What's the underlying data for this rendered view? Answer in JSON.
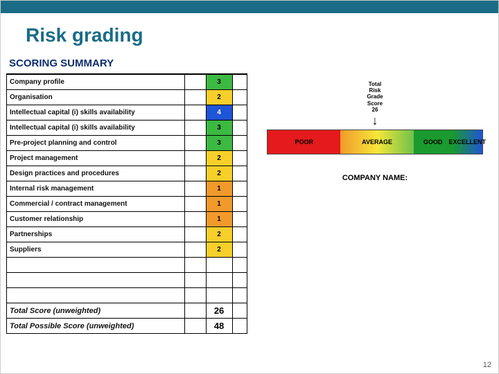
{
  "title": "Risk grading",
  "summary_heading": "SCORING SUMMARY",
  "rows": [
    {
      "label": "Company profile",
      "score": 3,
      "bg": "#3cb943"
    },
    {
      "label": "Organisation",
      "score": 2,
      "bg": "#f7cf2a"
    },
    {
      "label": "Intellectual capital (i) skills availability",
      "score": 4,
      "bg": "#1f55d6",
      "fg": "#ffffff"
    },
    {
      "label": "Intellectual capital (i) skills availability",
      "score": 3,
      "bg": "#3cb943"
    },
    {
      "label": "Pre-project planning and control",
      "score": 3,
      "bg": "#3cb943"
    },
    {
      "label": "Project management",
      "score": 2,
      "bg": "#f7cf2a"
    },
    {
      "label": "Design practices and procedures",
      "score": 2,
      "bg": "#f7cf2a"
    },
    {
      "label": "Internal risk management",
      "score": 1,
      "bg": "#f19a2b"
    },
    {
      "label": "Commercial / contract management",
      "score": 1,
      "bg": "#f19a2b"
    },
    {
      "label": "Customer relationship",
      "score": 1,
      "bg": "#f19a2b"
    },
    {
      "label": "Partnerships",
      "score": 2,
      "bg": "#f7cf2a"
    },
    {
      "label": "Suppliers",
      "score": 2,
      "bg": "#f7cf2a"
    }
  ],
  "totals": [
    {
      "label": "Total Score (unweighted)",
      "value": 26
    },
    {
      "label": "Total Possible Score (unweighted)",
      "value": 48
    }
  ],
  "gauge": {
    "header_lines": [
      "Total",
      "Risk",
      "Grade",
      "Score",
      "26"
    ],
    "segments": [
      {
        "label": "POOR",
        "color": "#e41a1c",
        "width": 34
      },
      {
        "label": "AVERAGE",
        "gradient": [
          "#f19a2b",
          "#f7e63a",
          "#6fc24a"
        ],
        "width": 34
      },
      {
        "label": "GOOD",
        "color": "#1a9a2f",
        "width": 18
      },
      {
        "label": "EXCELLENT",
        "gradient": [
          "#1a9a2f",
          "#1f55d6"
        ],
        "width": 14
      }
    ]
  },
  "company_name_label": "COMPANY NAME:",
  "page_number": 12,
  "colors": {
    "brand": "#1a6c86",
    "heading_navy": "#0b2e6f"
  }
}
